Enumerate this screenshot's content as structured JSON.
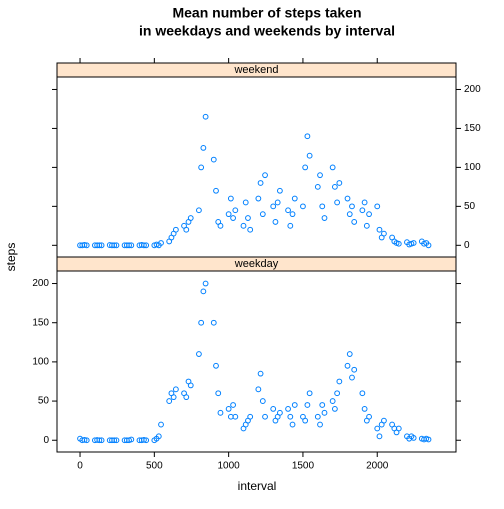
{
  "chart_data": {
    "type": "scatter",
    "title": [
      "Mean number of steps taken",
      "in weekdays and weekends by interval"
    ],
    "xlabel": "interval",
    "ylabel": "steps",
    "xlim": [
      -155,
      2530
    ],
    "ylim": [
      -15,
      216
    ],
    "xticks": [
      0,
      500,
      1000,
      1500,
      2000
    ],
    "yticks": [
      0,
      50,
      100,
      150,
      200
    ],
    "x": [
      0,
      15,
      30,
      45,
      100,
      115,
      130,
      145,
      200,
      215,
      230,
      245,
      300,
      315,
      330,
      345,
      400,
      415,
      430,
      445,
      500,
      515,
      530,
      545,
      600,
      615,
      630,
      645,
      700,
      715,
      730,
      745,
      800,
      815,
      830,
      845,
      900,
      915,
      930,
      945,
      1000,
      1015,
      1030,
      1045,
      1100,
      1115,
      1130,
      1145,
      1200,
      1215,
      1230,
      1245,
      1300,
      1315,
      1330,
      1345,
      1400,
      1415,
      1430,
      1445,
      1500,
      1515,
      1530,
      1545,
      1600,
      1615,
      1630,
      1645,
      1700,
      1715,
      1730,
      1745,
      1800,
      1815,
      1830,
      1845,
      1900,
      1915,
      1930,
      1945,
      2000,
      2015,
      2030,
      2045,
      2100,
      2115,
      2130,
      2145,
      2200,
      2215,
      2230,
      2245,
      2300,
      2315,
      2330,
      2345
    ],
    "series": [
      {
        "name": "weekend",
        "color": "#0080ff",
        "values": [
          0,
          0,
          0.5,
          0,
          0,
          0,
          0,
          0,
          0.3,
          0,
          0,
          0,
          0,
          0,
          0,
          0,
          0,
          0.5,
          0,
          0,
          0,
          1,
          0,
          3,
          5,
          10,
          15,
          20,
          25,
          20,
          30,
          35,
          45,
          100,
          125,
          165,
          110,
          70,
          30,
          25,
          40,
          60,
          35,
          45,
          25,
          55,
          35,
          20,
          60,
          80,
          40,
          90,
          50,
          30,
          55,
          70,
          45,
          25,
          40,
          60,
          50,
          100,
          140,
          115,
          75,
          90,
          50,
          35,
          100,
          75,
          55,
          80,
          60,
          40,
          50,
          30,
          45,
          55,
          25,
          40,
          50,
          20,
          10,
          15,
          10,
          5,
          3,
          2,
          4,
          1,
          2,
          3,
          5,
          2,
          3,
          0
        ]
      },
      {
        "name": "weekday",
        "color": "#0080ff",
        "values": [
          2,
          0,
          0.5,
          0,
          0,
          0.3,
          0,
          0,
          0,
          0,
          0,
          0,
          0,
          0,
          0,
          1,
          0,
          0,
          0.5,
          0,
          0,
          2,
          5,
          20,
          50,
          60,
          55,
          65,
          60,
          55,
          75,
          70,
          110,
          150,
          190,
          200,
          150,
          95,
          60,
          35,
          40,
          30,
          45,
          30,
          15,
          20,
          25,
          30,
          65,
          85,
          50,
          30,
          40,
          25,
          30,
          35,
          40,
          30,
          20,
          45,
          30,
          25,
          45,
          60,
          30,
          20,
          45,
          35,
          50,
          40,
          60,
          75,
          95,
          110,
          80,
          90,
          60,
          40,
          25,
          30,
          15,
          5,
          20,
          25,
          20,
          15,
          10,
          15,
          5,
          2,
          5,
          3,
          2,
          1,
          2,
          1
        ]
      }
    ]
  }
}
